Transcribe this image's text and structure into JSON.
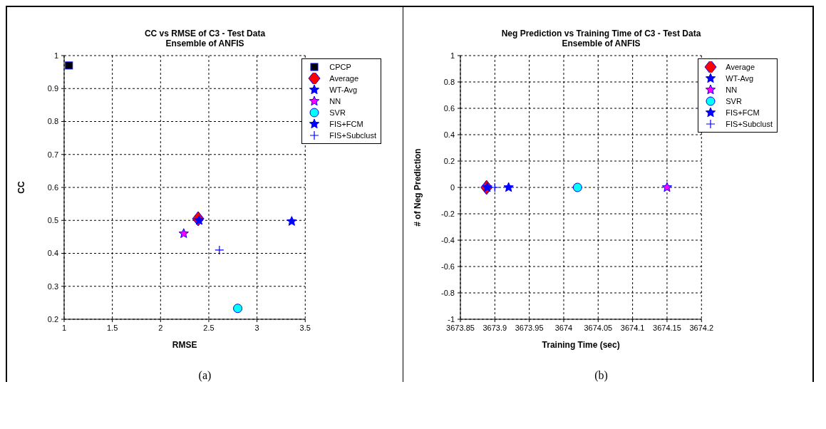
{
  "chart_data": [
    {
      "type": "scatter",
      "title": "CC vs RMSE of C3 - Test Data",
      "subtitle": "Ensemble of ANFIS",
      "xlabel": "RMSE",
      "ylabel": "CC",
      "xlim": [
        1,
        3.5
      ],
      "xticks": [
        1,
        1.5,
        2,
        2.5,
        3,
        3.5
      ],
      "ylim": [
        0.2,
        1
      ],
      "yticks": [
        0.2,
        0.3,
        0.4,
        0.5,
        0.6,
        0.7,
        0.8,
        0.9,
        1
      ],
      "grid": true,
      "legend": "top right",
      "annotations": [
        "(a)"
      ],
      "series": [
        {
          "name": "CPCP",
          "color": "#000000",
          "marker": "square",
          "x": [
            1.05
          ],
          "values": [
            0.97
          ]
        },
        {
          "name": "Average",
          "color": "#ff0000",
          "marker": "diamond",
          "x": [
            2.39
          ],
          "values": [
            0.505
          ]
        },
        {
          "name": "WT-Avg",
          "color": "#0000ff",
          "marker": "star",
          "x": [
            2.4
          ],
          "values": [
            0.5
          ]
        },
        {
          "name": "NN",
          "color": "#ff00ff",
          "marker": "star",
          "x": [
            2.24
          ],
          "values": [
            0.46
          ]
        },
        {
          "name": "SVR",
          "color": "#00ffff",
          "marker": "circle",
          "x": [
            2.8
          ],
          "values": [
            0.233
          ]
        },
        {
          "name": "FIS+FCM",
          "color": "#0000ff",
          "marker": "star",
          "x": [
            3.36
          ],
          "values": [
            0.497
          ]
        },
        {
          "name": "FIS+Subclust",
          "color": "#0000ff",
          "marker": "cross",
          "x": [
            2.61
          ],
          "values": [
            0.41
          ]
        }
      ]
    },
    {
      "type": "scatter",
      "title": "Neg Prediction vs Training Time of C3 - Test Data",
      "subtitle": "Ensemble of ANFIS",
      "xlabel": "Training Time (sec)",
      "ylabel": "# of Neg Prediction",
      "xlim": [
        3673.85,
        3674.2
      ],
      "xticks": [
        3673.85,
        3673.9,
        3673.95,
        3674,
        3674.05,
        3674.1,
        3674.15,
        3674.2
      ],
      "ylim": [
        -1,
        1
      ],
      "yticks": [
        -1,
        -0.8,
        -0.6,
        -0.4,
        -0.2,
        0,
        0.2,
        0.4,
        0.6,
        0.8,
        1
      ],
      "grid": true,
      "legend": "top right",
      "annotations": [
        "(b)"
      ],
      "series": [
        {
          "name": "Average",
          "color": "#ff0000",
          "marker": "diamond",
          "x": [
            3673.888
          ],
          "values": [
            0
          ]
        },
        {
          "name": "WT-Avg",
          "color": "#0000ff",
          "marker": "star",
          "x": [
            3673.889
          ],
          "values": [
            0
          ]
        },
        {
          "name": "NN",
          "color": "#ff00ff",
          "marker": "star",
          "x": [
            3674.15
          ],
          "values": [
            0
          ]
        },
        {
          "name": "SVR",
          "color": "#00ffff",
          "marker": "circle",
          "x": [
            3674.02
          ],
          "values": [
            0
          ]
        },
        {
          "name": "FIS+FCM",
          "color": "#0000ff",
          "marker": "star",
          "x": [
            3673.92
          ],
          "values": [
            0
          ]
        },
        {
          "name": "FIS+Subclust",
          "color": "#0000ff",
          "marker": "cross",
          "x": [
            3673.9
          ],
          "values": [
            0
          ]
        }
      ]
    }
  ]
}
